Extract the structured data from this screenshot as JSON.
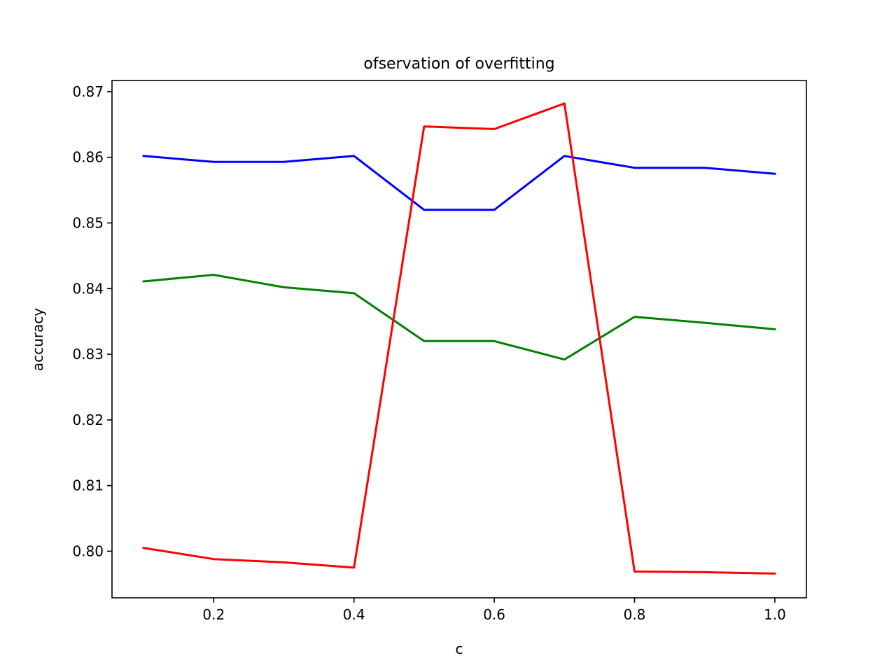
{
  "chart_data": {
    "type": "line",
    "title": "ofservation of overfitting",
    "xlabel": "c",
    "ylabel": "accuracy",
    "xlim": [
      0.055,
      1.045
    ],
    "ylim": [
      0.7929,
      0.8717
    ],
    "x": [
      0.1,
      0.2,
      0.3,
      0.4,
      0.5,
      0.6,
      0.7,
      0.8,
      0.9,
      1.0
    ],
    "xticks": [
      0.2,
      0.4,
      0.6,
      0.8,
      1.0
    ],
    "xtick_labels": [
      "0.2",
      "0.4",
      "0.6",
      "0.8",
      "1.0"
    ],
    "yticks": [
      0.8,
      0.81,
      0.82,
      0.83,
      0.84,
      0.85,
      0.86,
      0.87
    ],
    "ytick_labels": [
      "0.80",
      "0.81",
      "0.82",
      "0.83",
      "0.84",
      "0.85",
      "0.86",
      "0.87"
    ],
    "grid": false,
    "series": [
      {
        "color": "#0000ff",
        "values": [
          0.8602,
          0.8593,
          0.8593,
          0.8602,
          0.852,
          0.852,
          0.8602,
          0.8584,
          0.8584,
          0.8575
        ]
      },
      {
        "color": "#008000",
        "values": [
          0.8411,
          0.8421,
          0.8402,
          0.8393,
          0.832,
          0.832,
          0.8292,
          0.8357,
          0.8348,
          0.8338
        ]
      },
      {
        "color": "#ff0000",
        "values": [
          0.8005,
          0.7988,
          0.7983,
          0.7975,
          0.8647,
          0.8643,
          0.8682,
          0.7969,
          0.7968,
          0.7966
        ]
      }
    ]
  }
}
